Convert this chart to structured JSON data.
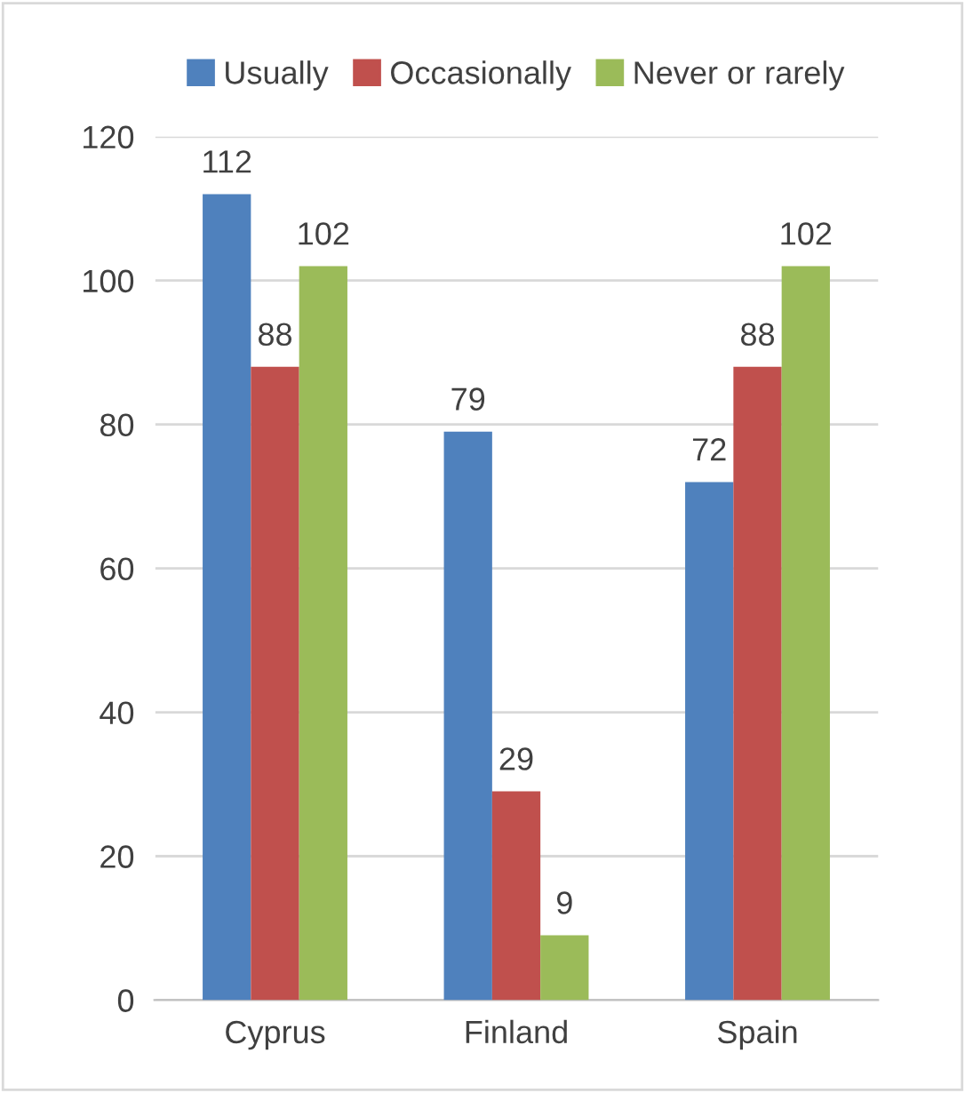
{
  "chart_data": {
    "type": "bar",
    "categories": [
      "Cyprus",
      "Finland",
      "Spain"
    ],
    "series": [
      {
        "name": "Usually",
        "color": "#4f81bd",
        "values": [
          112,
          79,
          72
        ]
      },
      {
        "name": "Occasionally",
        "color": "#c0504d",
        "values": [
          88,
          29,
          88
        ]
      },
      {
        "name": "Never or rarely",
        "color": "#9bbb59",
        "values": [
          102,
          9,
          102
        ]
      }
    ],
    "ylim": [
      0,
      120
    ],
    "yticks": [
      0,
      20,
      40,
      60,
      80,
      100,
      120
    ],
    "grid": "y",
    "legend": "top",
    "data_labels": true
  }
}
